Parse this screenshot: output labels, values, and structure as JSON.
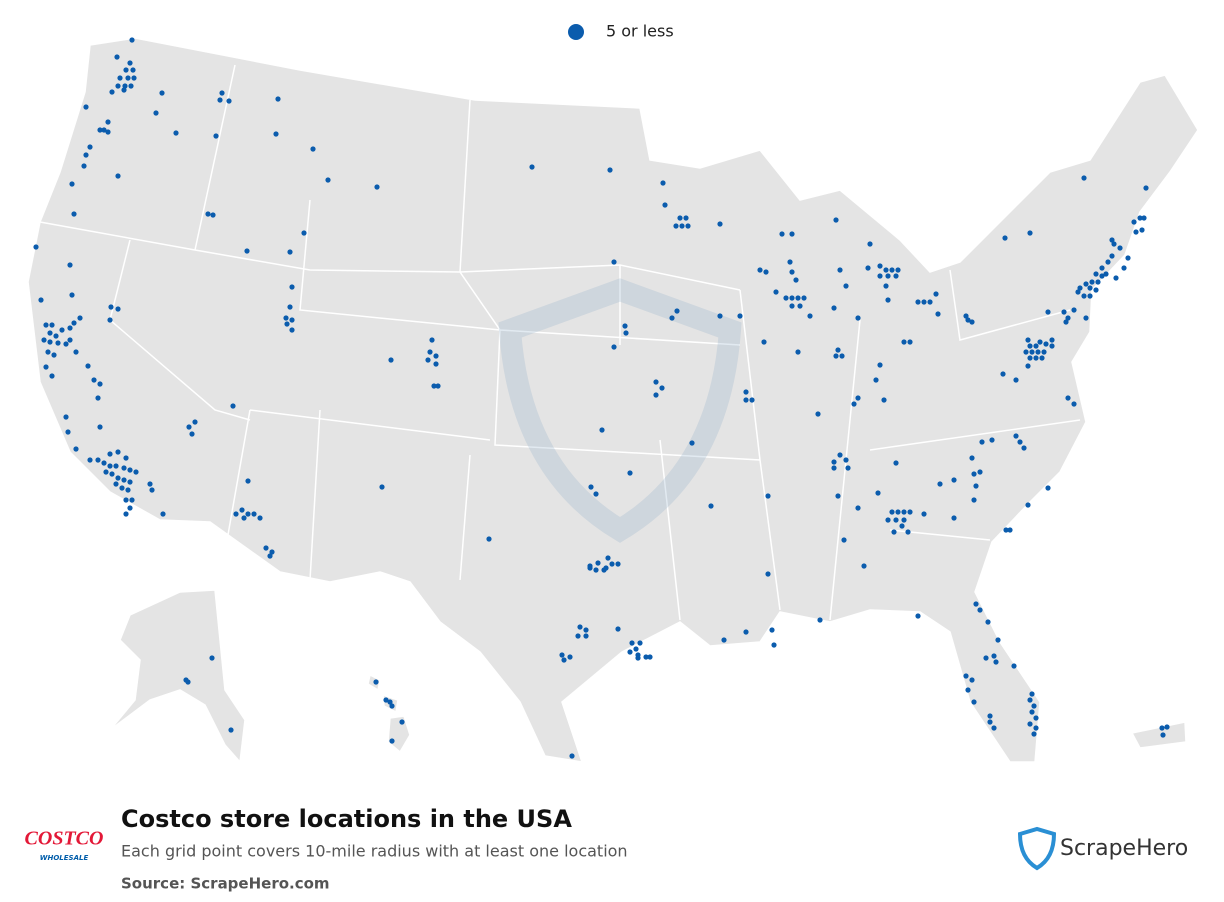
{
  "legend": {
    "label": "5 or less"
  },
  "footer": {
    "title": "Costco store locations in the USA",
    "subtitle": "Each grid point covers 10-mile radius with at least one location",
    "source": "Source: ScrapeHero.com",
    "logo_top": "COSTCO",
    "logo_bottom": "WHOLESALE",
    "brand": "ScrapeHero"
  }
}
